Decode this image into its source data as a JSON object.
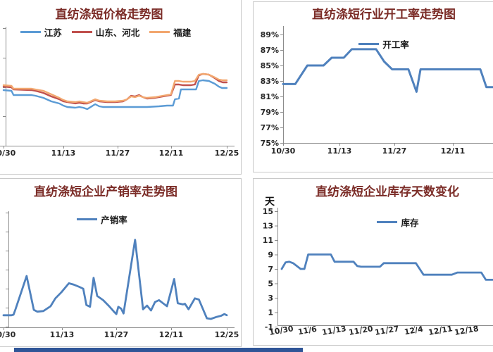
{
  "page": {
    "background": "#ffffff",
    "panel_border_color": "#c9c9c9",
    "bottom_bar_color": "#2F5597",
    "axis_color": "#8c8c8c",
    "title_color": "#7B2C27"
  },
  "chart_data": [
    {
      "type": "line",
      "title": "直纺涤短价格走势图",
      "xlabel": "",
      "ylabel": "",
      "xlim": [
        0,
        56
      ],
      "ylim": [
        0,
        117
      ],
      "grid": false,
      "legend_position": "top",
      "x_tick_labels": [
        "10/30",
        "11/13",
        "11/27",
        "12/11",
        "12/25"
      ],
      "x_tick_days": [
        0,
        14,
        28,
        42,
        56
      ],
      "y_ticks": [],
      "legend": [
        {
          "label": "江苏",
          "color": "#5B9BD5"
        },
        {
          "label": "山东、河北",
          "color": "#C0504D"
        },
        {
          "label": "福建",
          "color": "#F2A76F"
        }
      ],
      "series": [
        {
          "name": "江苏",
          "color": "#5B9BD5",
          "points": [
            [
              0,
              79
            ],
            [
              2,
              78
            ],
            [
              2.5,
              72
            ],
            [
              7,
              72
            ],
            [
              8,
              71
            ],
            [
              10,
              68
            ],
            [
              12,
              63
            ],
            [
              14,
              60
            ],
            [
              15,
              57
            ],
            [
              16,
              55
            ],
            [
              18,
              54
            ],
            [
              19,
              55
            ],
            [
              20,
              54
            ],
            [
              21,
              52
            ],
            [
              23,
              59
            ],
            [
              24,
              56
            ],
            [
              25,
              55
            ],
            [
              27,
              55
            ],
            [
              30,
              55
            ],
            [
              33,
              55
            ],
            [
              36,
              55
            ],
            [
              39,
              56
            ],
            [
              41,
              57
            ],
            [
              42.5,
              57
            ],
            [
              43,
              66
            ],
            [
              44,
              67
            ],
            [
              44.5,
              80
            ],
            [
              48.3,
              80
            ],
            [
              49,
              92
            ],
            [
              50,
              93
            ],
            [
              51.5,
              92
            ],
            [
              53,
              88
            ],
            [
              54,
              84
            ],
            [
              54.8,
              82
            ],
            [
              56,
              82
            ]
          ]
        },
        {
          "name": "山东、河北",
          "color": "#C0504D",
          "points": [
            [
              0,
              84
            ],
            [
              2,
              83
            ],
            [
              2.5,
              80
            ],
            [
              7,
              79
            ],
            [
              8,
              78
            ],
            [
              10,
              75
            ],
            [
              12,
              70
            ],
            [
              14,
              66
            ],
            [
              15,
              63
            ],
            [
              16,
              62
            ],
            [
              18,
              60
            ],
            [
              19,
              61
            ],
            [
              20,
              60
            ],
            [
              21,
              60
            ],
            [
              23,
              65
            ],
            [
              24,
              63
            ],
            [
              26,
              62
            ],
            [
              28,
              62
            ],
            [
              30,
              63
            ],
            [
              31,
              66
            ],
            [
              32,
              71
            ],
            [
              33,
              70
            ],
            [
              34,
              72
            ],
            [
              35,
              69
            ],
            [
              36,
              67
            ],
            [
              38,
              68
            ],
            [
              40,
              70
            ],
            [
              42,
              72
            ],
            [
              43,
              87
            ],
            [
              44,
              87
            ],
            [
              45,
              86
            ],
            [
              47,
              86
            ],
            [
              48,
              87
            ],
            [
              49,
              100
            ],
            [
              50,
              102
            ],
            [
              51.5,
              101
            ],
            [
              53,
              96
            ],
            [
              54,
              92
            ],
            [
              55,
              90
            ],
            [
              56,
              90
            ]
          ]
        },
        {
          "name": "福建",
          "color": "#F2A76F",
          "points": [
            [
              0,
              86
            ],
            [
              2,
              85
            ],
            [
              2.5,
              81
            ],
            [
              7,
              81
            ],
            [
              8,
              80
            ],
            [
              10,
              78
            ],
            [
              12,
              73
            ],
            [
              14,
              68
            ],
            [
              15,
              65
            ],
            [
              16,
              63
            ],
            [
              18,
              62
            ],
            [
              19,
              63
            ],
            [
              20,
              62
            ],
            [
              21,
              61
            ],
            [
              23,
              66
            ],
            [
              24,
              64
            ],
            [
              26,
              63
            ],
            [
              28,
              63
            ],
            [
              30,
              64
            ],
            [
              31,
              66
            ],
            [
              32,
              70
            ],
            [
              33,
              69
            ],
            [
              34,
              71
            ],
            [
              35,
              69
            ],
            [
              36,
              68
            ],
            [
              38,
              69
            ],
            [
              40,
              71
            ],
            [
              42,
              73
            ],
            [
              43,
              92
            ],
            [
              44,
              92
            ],
            [
              45,
              91
            ],
            [
              47,
              91
            ],
            [
              48,
              92
            ],
            [
              49,
              101
            ],
            [
              50,
              102
            ],
            [
              51.5,
              101
            ],
            [
              53,
              97
            ],
            [
              54,
              94
            ],
            [
              55,
              93
            ],
            [
              56,
              93
            ]
          ]
        }
      ]
    },
    {
      "type": "line",
      "title": "直纺涤短行业开工率走势图",
      "xlabel": "",
      "ylabel": "",
      "xlim": [
        0,
        52
      ],
      "ylim": [
        75,
        89
      ],
      "grid": false,
      "legend_position": "inside-top",
      "x_tick_labels": [
        "10/30",
        "11/13",
        "11/27",
        "12/11"
      ],
      "x_tick_days": [
        0,
        14,
        28,
        42
      ],
      "y_ticks": [
        {
          "value": 89,
          "label": "89%"
        },
        {
          "value": 87,
          "label": "87%"
        },
        {
          "value": 85,
          "label": "85%"
        },
        {
          "value": 83,
          "label": "83%"
        },
        {
          "value": 81,
          "label": "81%"
        },
        {
          "value": 79,
          "label": "79%"
        },
        {
          "value": 77,
          "label": "77%"
        },
        {
          "value": 75,
          "label": "75%"
        }
      ],
      "legend": [
        {
          "label": "开工率",
          "color": "#4F81BD"
        }
      ],
      "series": [
        {
          "name": "开工率",
          "color": "#4F81BD",
          "points": [
            [
              0,
              82.6
            ],
            [
              3,
              82.6
            ],
            [
              6,
              85
            ],
            [
              10,
              85
            ],
            [
              12,
              86
            ],
            [
              15,
              86
            ],
            [
              17,
              87.1
            ],
            [
              23,
              87.1
            ],
            [
              25,
              85.5
            ],
            [
              27,
              84.5
            ],
            [
              31,
              84.5
            ],
            [
              33,
              81.6
            ],
            [
              34,
              84.5
            ],
            [
              48.8,
              84.5
            ],
            [
              50.3,
              82.2
            ],
            [
              52.2,
              82.2
            ]
          ]
        }
      ]
    },
    {
      "type": "line",
      "title": "直纺涤短企业产销率走势图",
      "xlabel": "",
      "ylabel": "",
      "xlim": [
        0,
        56
      ],
      "ylim": [
        40,
        230
      ],
      "grid": false,
      "legend_position": "top",
      "x_tick_labels": [
        "10/30",
        "11/13",
        "11/27",
        "12/11",
        "12/25"
      ],
      "x_tick_days": [
        0,
        14,
        28,
        42,
        56
      ],
      "y_ticks": [],
      "legend": [
        {
          "label": "产销率",
          "color": "#4F81BD"
        }
      ],
      "series": [
        {
          "name": "产销率",
          "color": "#4F81BD",
          "points": [
            [
              0,
              60
            ],
            [
              2,
              60
            ],
            [
              2.5,
              61
            ],
            [
              3,
              70
            ],
            [
              5.8,
              125
            ],
            [
              7.6,
              69
            ],
            [
              8.5,
              66
            ],
            [
              10,
              67
            ],
            [
              11.8,
              75
            ],
            [
              13,
              88
            ],
            [
              14.5,
              98
            ],
            [
              16.4,
              113
            ],
            [
              17.5,
              111
            ],
            [
              19,
              107
            ],
            [
              20,
              104
            ],
            [
              20.8,
              77
            ],
            [
              21.7,
              74
            ],
            [
              22.6,
              122
            ],
            [
              23.5,
              92
            ],
            [
              25,
              85
            ],
            [
              26.5,
              75
            ],
            [
              27.7,
              66
            ],
            [
              28.3,
              62
            ],
            [
              28.8,
              74
            ],
            [
              29.5,
              71
            ],
            [
              30.1,
              63
            ],
            [
              33,
              185
            ],
            [
              35,
              70
            ],
            [
              36,
              76
            ],
            [
              37,
              68
            ],
            [
              38,
              82
            ],
            [
              39,
              85
            ],
            [
              40,
              80
            ],
            [
              41,
              75
            ],
            [
              42.8,
              120
            ],
            [
              43.7,
              80
            ],
            [
              45,
              78
            ],
            [
              45.5,
              79
            ],
            [
              46.4,
              70
            ],
            [
              48,
              88
            ],
            [
              49,
              86
            ],
            [
              51,
              55
            ],
            [
              52,
              54
            ],
            [
              53.3,
              57
            ],
            [
              54.5,
              59
            ],
            [
              55.4,
              62
            ],
            [
              56,
              60
            ]
          ]
        }
      ]
    },
    {
      "type": "line",
      "title": "直纺涤短企业库存天数变化",
      "xlabel": "",
      "ylabel": "天",
      "xlim": [
        0,
        56
      ],
      "ylim": [
        -1,
        15
      ],
      "grid": false,
      "legend_position": "inside-top",
      "x_tick_labels": [
        "10/30",
        "11/6",
        "11/13",
        "11/20",
        "11/27",
        "12/4",
        "12/11",
        "12/18"
      ],
      "x_tick_days": [
        0,
        7,
        14,
        21,
        28,
        35,
        42,
        49
      ],
      "y_ticks": [
        {
          "value": 15,
          "label": "15"
        },
        {
          "value": 13,
          "label": "13"
        },
        {
          "value": 11,
          "label": "11"
        },
        {
          "value": 9,
          "label": "9"
        },
        {
          "value": 7,
          "label": "7"
        },
        {
          "value": 5,
          "label": "5"
        },
        {
          "value": 3,
          "label": "3"
        },
        {
          "value": 1,
          "label": "1"
        },
        {
          "value": -1,
          "label": "-1"
        }
      ],
      "legend": [
        {
          "label": "库存",
          "color": "#4F81BD"
        }
      ],
      "series": [
        {
          "name": "库存",
          "color": "#4F81BD",
          "points": [
            [
              0,
              7
            ],
            [
              1,
              7.9
            ],
            [
              2,
              8
            ],
            [
              3,
              7.8
            ],
            [
              4,
              7.4
            ],
            [
              5,
              7
            ],
            [
              6,
              7
            ],
            [
              7,
              9
            ],
            [
              13,
              9
            ],
            [
              14,
              8
            ],
            [
              19,
              8
            ],
            [
              20,
              7.4
            ],
            [
              21,
              7.3
            ],
            [
              26,
              7.3
            ],
            [
              27,
              7.8
            ],
            [
              35.5,
              7.8
            ],
            [
              37.5,
              6.2
            ],
            [
              45,
              6.2
            ],
            [
              46.5,
              6.5
            ],
            [
              52.8,
              6.5
            ],
            [
              54,
              5.5
            ],
            [
              55.9,
              5.5
            ]
          ]
        }
      ]
    }
  ]
}
